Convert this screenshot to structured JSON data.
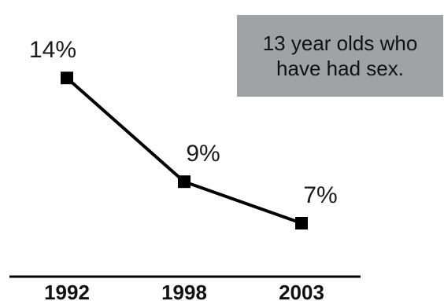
{
  "chart_data": {
    "type": "line",
    "title": "13 year olds who have had sex.",
    "categories": [
      "1992",
      "1998",
      "2003"
    ],
    "values": [
      14,
      9,
      7
    ],
    "data_labels": [
      "14%",
      "9%",
      "7%"
    ],
    "ylim": [
      4.5,
      17
    ],
    "grid": false,
    "line_color": "#000000",
    "label_color": "#1a1a1a"
  }
}
